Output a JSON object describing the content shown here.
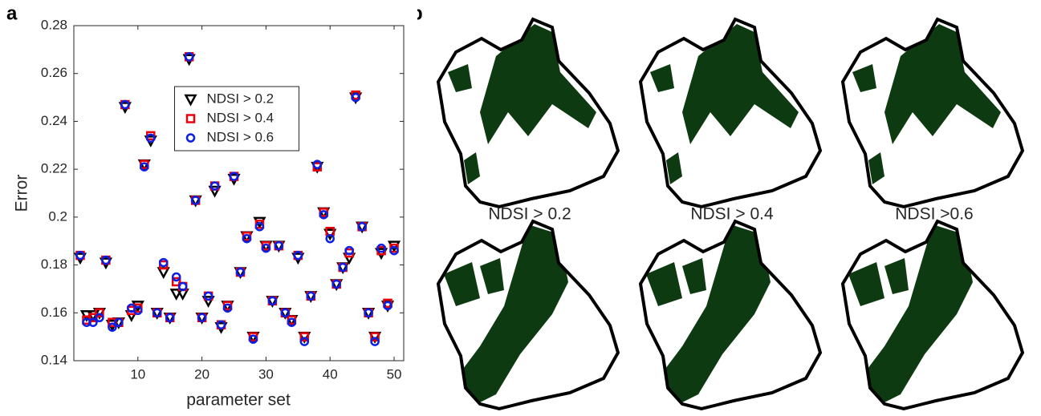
{
  "chart_data": {
    "type": "scatter",
    "panel_label": "a",
    "xlabel": "parameter set",
    "ylabel": "Error",
    "xlim": [
      0,
      51.5
    ],
    "ylim": [
      0.14,
      0.28
    ],
    "xticks": [
      10,
      20,
      30,
      40,
      50
    ],
    "yticks": [
      0.14,
      0.16,
      0.18,
      0.2,
      0.22,
      0.24,
      0.26,
      0.28
    ],
    "legend": "upper center",
    "x": [
      1,
      2,
      3,
      4,
      5,
      6,
      7,
      8,
      9,
      10,
      11,
      12,
      13,
      14,
      15,
      16,
      17,
      18,
      19,
      20,
      21,
      22,
      23,
      24,
      25,
      26,
      27,
      28,
      29,
      30,
      31,
      32,
      33,
      34,
      35,
      36,
      37,
      38,
      39,
      40,
      41,
      42,
      43,
      44,
      45,
      46,
      47,
      48,
      49,
      50
    ],
    "series": [
      {
        "name": "NDSI > 0.2",
        "color": "#000000",
        "marker": "triangle-down",
        "values": [
          0.183,
          0.159,
          0.159,
          0.16,
          0.181,
          0.155,
          0.156,
          0.246,
          0.159,
          0.163,
          0.222,
          0.232,
          0.16,
          0.177,
          0.158,
          0.168,
          0.168,
          0.266,
          0.207,
          0.158,
          0.165,
          0.211,
          0.154,
          0.163,
          0.216,
          0.177,
          0.192,
          0.15,
          0.198,
          0.188,
          0.165,
          0.188,
          0.16,
          0.157,
          0.183,
          0.15,
          0.167,
          0.221,
          0.202,
          0.193,
          0.172,
          0.179,
          0.183,
          0.25,
          0.196,
          0.16,
          0.15,
          0.185,
          0.163,
          0.188
        ]
      },
      {
        "name": "NDSI > 0.4",
        "color": "#e8000b",
        "marker": "square",
        "values": [
          0.184,
          0.157,
          0.158,
          0.16,
          0.182,
          0.156,
          0.156,
          0.247,
          0.161,
          0.162,
          0.222,
          0.234,
          0.16,
          0.18,
          0.158,
          0.173,
          0.171,
          0.267,
          0.207,
          0.158,
          0.167,
          0.213,
          0.155,
          0.163,
          0.217,
          0.177,
          0.192,
          0.15,
          0.197,
          0.188,
          0.165,
          0.188,
          0.16,
          0.157,
          0.184,
          0.15,
          0.167,
          0.221,
          0.202,
          0.194,
          0.172,
          0.179,
          0.185,
          0.251,
          0.196,
          0.16,
          0.15,
          0.186,
          0.164,
          0.187
        ]
      },
      {
        "name": "NDSI > 0.6",
        "color": "#0a1fe8",
        "marker": "circle",
        "values": [
          0.184,
          0.156,
          0.156,
          0.158,
          0.182,
          0.154,
          0.156,
          0.247,
          0.162,
          0.161,
          0.221,
          0.233,
          0.16,
          0.181,
          0.158,
          0.175,
          0.171,
          0.267,
          0.207,
          0.158,
          0.167,
          0.213,
          0.155,
          0.162,
          0.217,
          0.177,
          0.191,
          0.149,
          0.196,
          0.187,
          0.165,
          0.188,
          0.16,
          0.156,
          0.184,
          0.148,
          0.167,
          0.222,
          0.201,
          0.191,
          0.172,
          0.179,
          0.186,
          0.25,
          0.196,
          0.16,
          0.148,
          0.187,
          0.163,
          0.186
        ]
      }
    ]
  },
  "maps": {
    "panel_label": "b",
    "labels": [
      "NDSI > 0.2",
      "NDSI > 0.4",
      "NDSI  >0.6"
    ]
  }
}
